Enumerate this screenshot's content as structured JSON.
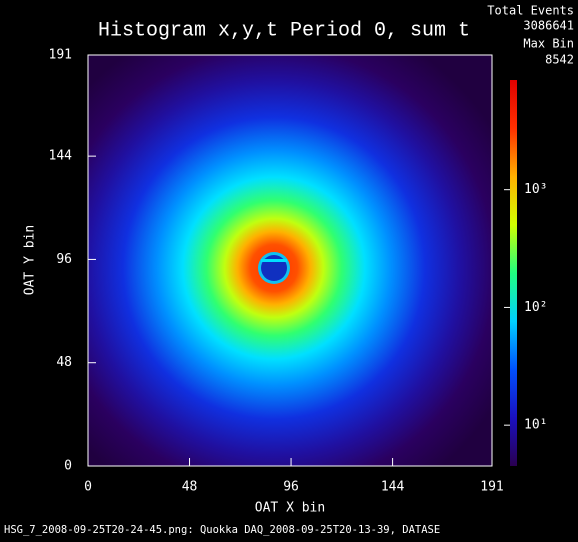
{
  "chart_data": {
    "type": "heatmap",
    "title": "Histogram x,y,t Period 0, sum t",
    "total_events_label": "Total Events",
    "total_events": "3086641",
    "max_bin_label": "Max Bin",
    "max_bin": "8542",
    "xlabel": "OAT X bin",
    "ylabel": "OAT Y bin",
    "footer": "HSG_7_2008-09-25T20-24-45.png: Quokka DAQ_2008-09-25T20-13-39, DATASE",
    "xlim": [
      0,
      191
    ],
    "ylim": [
      0,
      191
    ],
    "xticks": [
      0,
      48,
      96,
      144,
      191
    ],
    "yticks": [
      0,
      48,
      96,
      144,
      191
    ],
    "clim": [
      4.5,
      8542
    ],
    "color_log_scale": true,
    "colorbar_ticks": [
      {
        "value": 10,
        "label": "10¹"
      },
      {
        "value": 100,
        "label": "10²"
      },
      {
        "value": 1000,
        "label": "10³"
      }
    ],
    "colormap": [
      "#2a0050",
      "#1a10c0",
      "#0050ff",
      "#00d0ff",
      "#20ff80",
      "#d0ff00",
      "#ffb000",
      "#ff3000",
      "#e00000"
    ]
  }
}
